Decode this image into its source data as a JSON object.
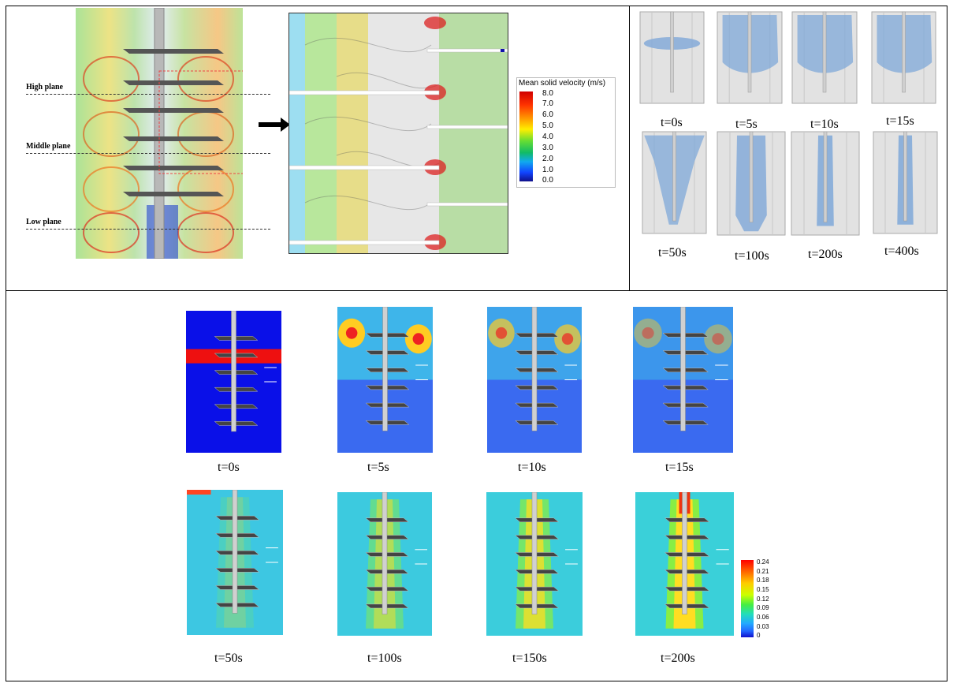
{
  "top_left": {
    "planes": [
      {
        "label": "High plane"
      },
      {
        "label": "Middle plane"
      },
      {
        "label": "Low plane"
      }
    ],
    "legend": {
      "title": "Mean solid velocity (m/s)",
      "ticks": [
        "8.0",
        "7.0",
        "6.0",
        "5.0",
        "4.0",
        "3.0",
        "2.0",
        "1.0",
        "0.0"
      ],
      "colors": [
        "#d00000",
        "#ff4000",
        "#ff9900",
        "#ffee00",
        "#80e040",
        "#20c050",
        "#10b0e0",
        "#1050ff",
        "#1010a0"
      ]
    }
  },
  "top_right": {
    "time_labels": [
      "t=0s",
      "t=5s",
      "t=10s",
      "t=15s",
      "t=50s",
      "t=100s",
      "t=200s",
      "t=400s"
    ]
  },
  "bottom": {
    "time_labels": [
      "t=0s",
      "t=5s",
      "t=10s",
      "t=15s",
      "t=50s",
      "t=100s",
      "t=150s",
      "t=200s"
    ],
    "legend": {
      "ticks": [
        "0.24",
        "0.21",
        "0.18",
        "0.15",
        "0.12",
        "0.09",
        "0.06",
        "0.03",
        "0"
      ],
      "colors": [
        "#ff0000",
        "#ff6600",
        "#ffcc00",
        "#ccff00",
        "#55ee33",
        "#22ddaa",
        "#22aaff",
        "#2266ff",
        "#1010dd"
      ]
    }
  }
}
